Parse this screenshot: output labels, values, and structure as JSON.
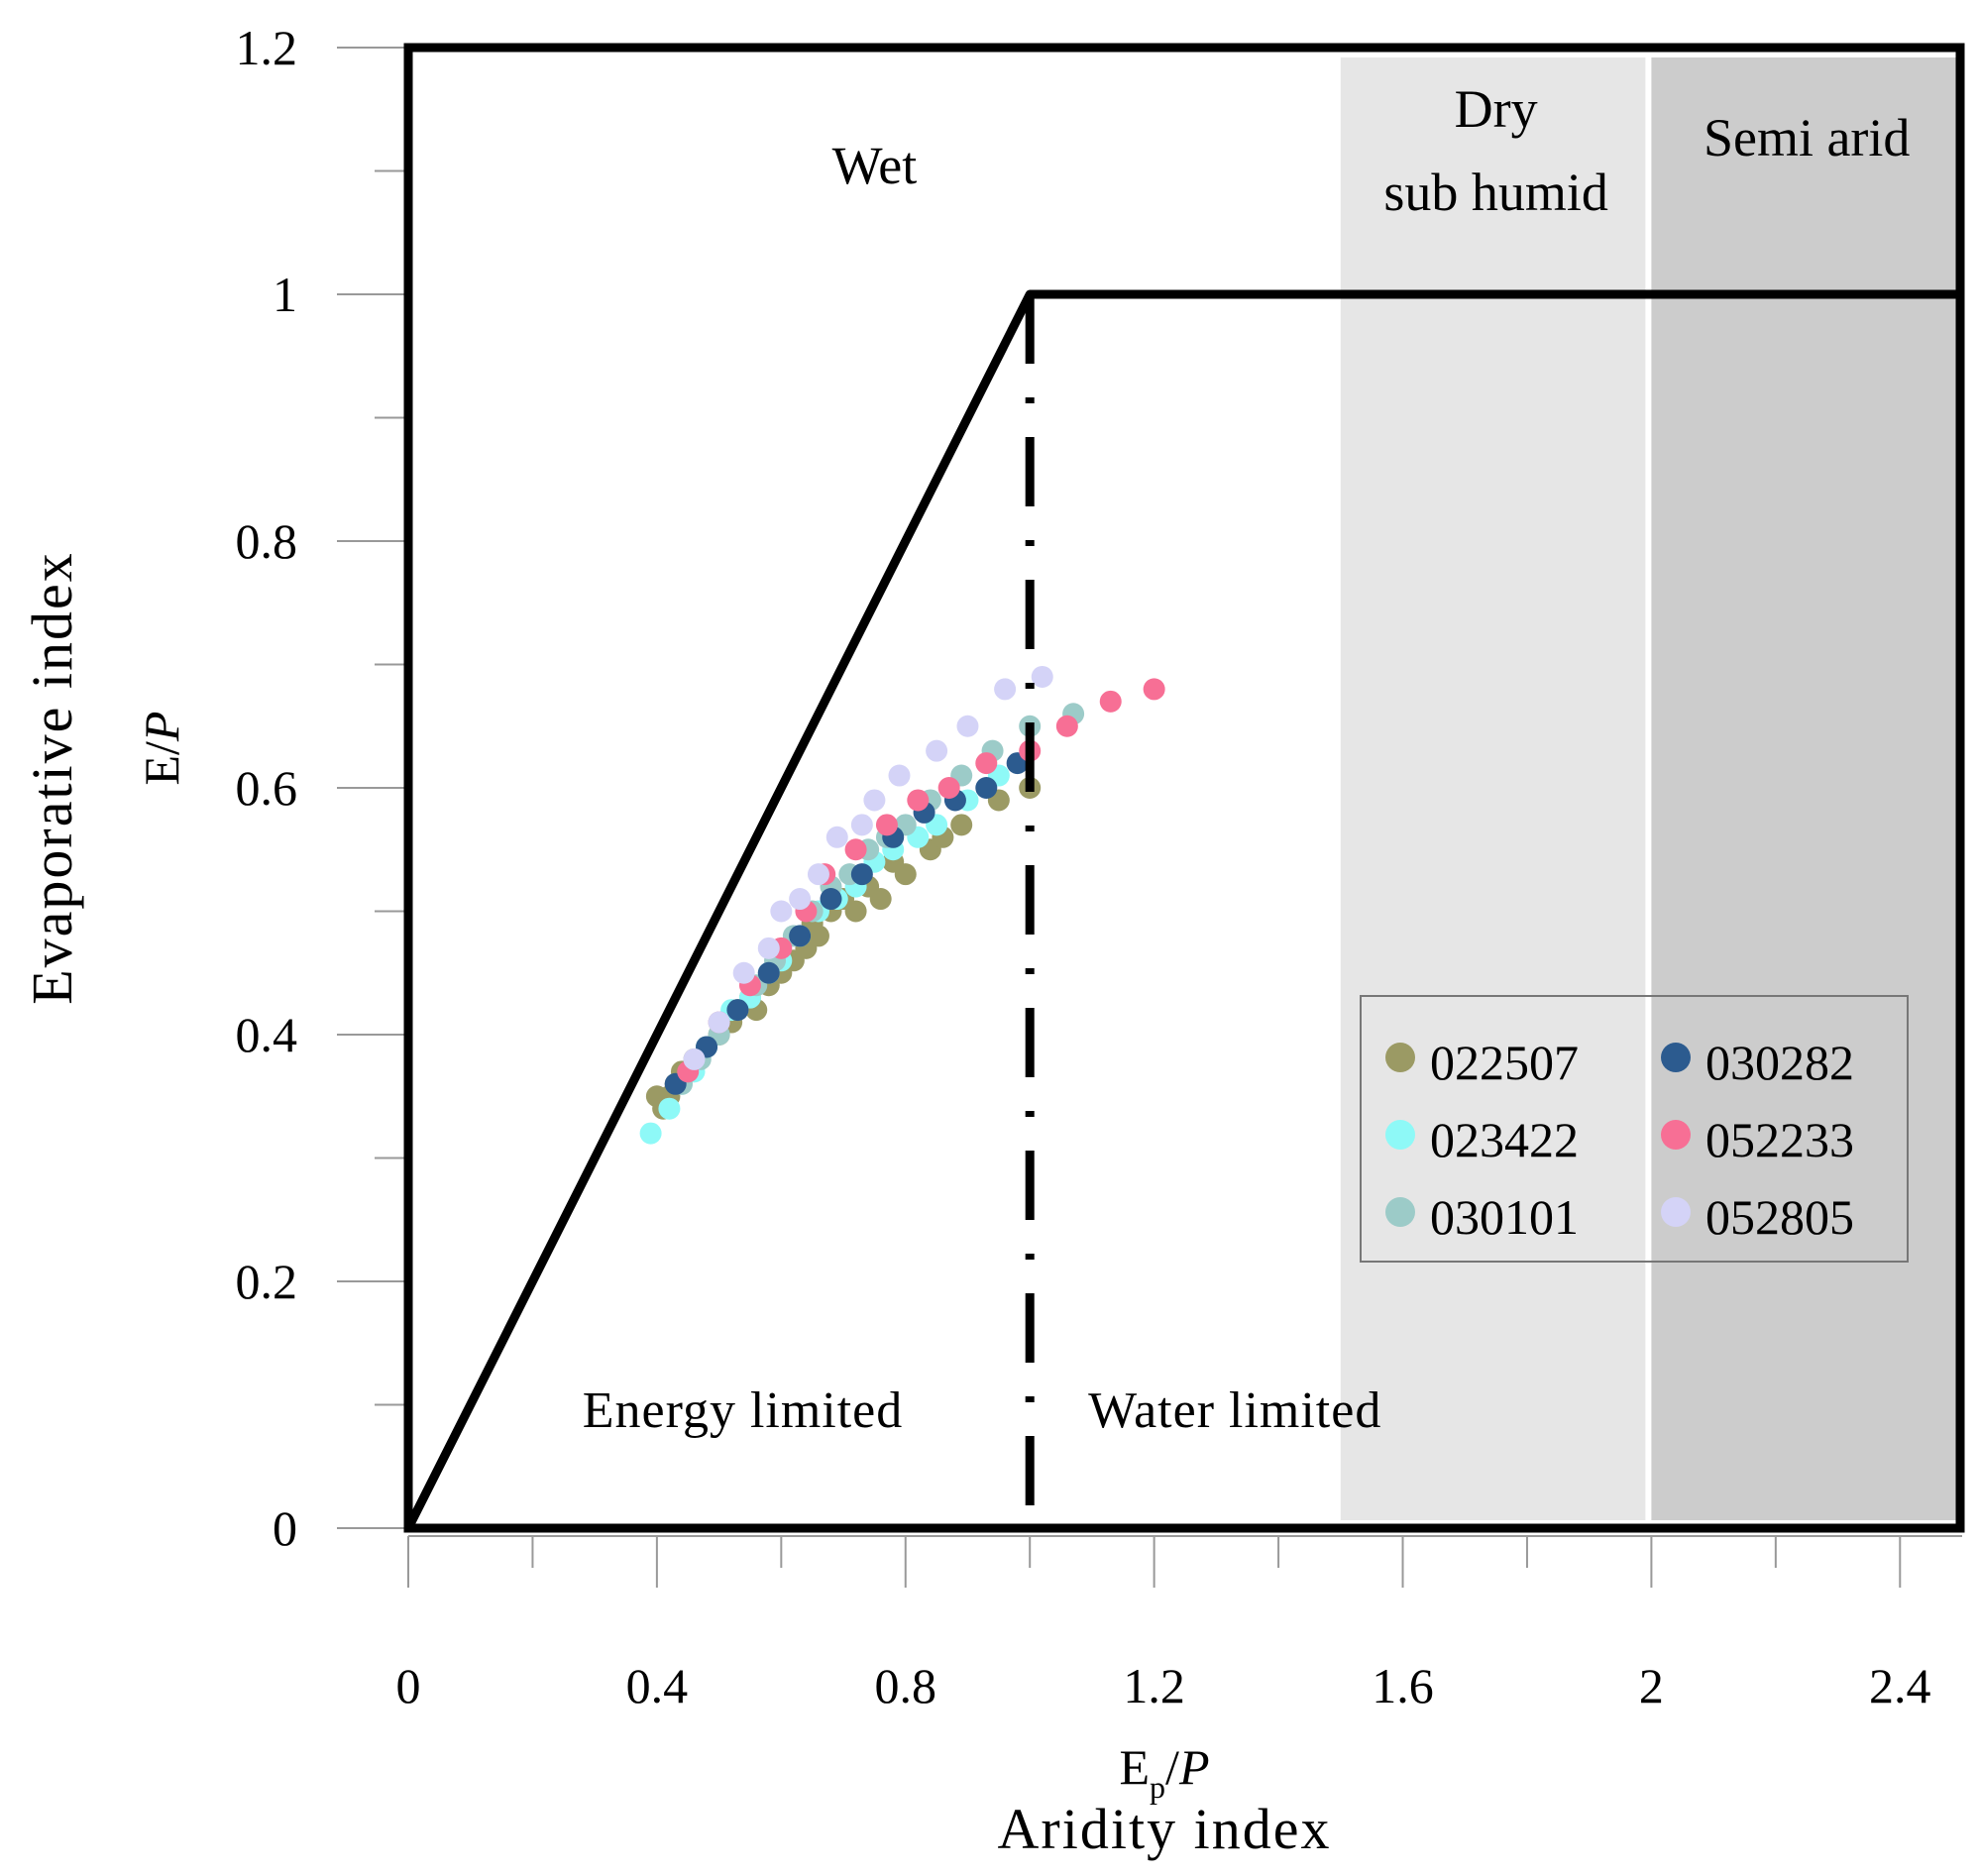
{
  "chart_data": {
    "type": "scatter",
    "xlim": [
      0,
      2.5
    ],
    "ylim": [
      0,
      1.2
    ],
    "x_ticks": [
      "0",
      "0.4",
      "0.8",
      "1.2",
      "1.6",
      "2",
      "2.4"
    ],
    "y_ticks": [
      "0",
      "0.2",
      "0.4",
      "0.6",
      "0.8",
      "1",
      "1.2"
    ],
    "xlabel_math": "Ep/P",
    "xlabel": "Aridity index",
    "ylabel_math": "E/P",
    "ylabel": "Evaporative index",
    "regions": [
      {
        "label": "Wet",
        "x_from": 0,
        "x_to": 1.5,
        "fill": "#ffffff"
      },
      {
        "label": "Dry sub humid",
        "label_lines": [
          "Dry",
          "sub humid"
        ],
        "x_from": 1.5,
        "x_to": 2.0,
        "fill": "#e6e6e6"
      },
      {
        "label": "Semi arid",
        "x_from": 2.0,
        "x_to": 2.5,
        "fill": "#cccccc"
      }
    ],
    "limits": {
      "energy_limit": [
        [
          0,
          0
        ],
        [
          1,
          1
        ]
      ],
      "water_limit": [
        [
          1,
          1
        ],
        [
          2.5,
          1
        ]
      ],
      "divider_x": 1,
      "left_label": "Energy limited",
      "right_label": "Water limited"
    },
    "grid": false,
    "legend_position": "lower-right",
    "series": [
      {
        "name": "022507",
        "color": "#9b9a64",
        "points": [
          [
            0.4,
            0.35
          ],
          [
            0.41,
            0.34
          ],
          [
            0.42,
            0.35
          ],
          [
            0.43,
            0.36
          ],
          [
            0.44,
            0.37
          ],
          [
            0.46,
            0.38
          ],
          [
            0.48,
            0.39
          ],
          [
            0.5,
            0.4
          ],
          [
            0.52,
            0.41
          ],
          [
            0.53,
            0.42
          ],
          [
            0.55,
            0.43
          ],
          [
            0.56,
            0.42
          ],
          [
            0.58,
            0.44
          ],
          [
            0.6,
            0.45
          ],
          [
            0.62,
            0.46
          ],
          [
            0.64,
            0.47
          ],
          [
            0.65,
            0.49
          ],
          [
            0.66,
            0.48
          ],
          [
            0.68,
            0.5
          ],
          [
            0.7,
            0.51
          ],
          [
            0.72,
            0.5
          ],
          [
            0.74,
            0.52
          ],
          [
            0.76,
            0.51
          ],
          [
            0.78,
            0.54
          ],
          [
            0.8,
            0.53
          ],
          [
            0.84,
            0.55
          ],
          [
            0.86,
            0.56
          ],
          [
            0.89,
            0.57
          ],
          [
            0.95,
            0.59
          ],
          [
            1.0,
            0.6
          ]
        ]
      },
      {
        "name": "023422",
        "color": "#8ef9f7",
        "points": [
          [
            0.39,
            0.32
          ],
          [
            0.42,
            0.34
          ],
          [
            0.44,
            0.36
          ],
          [
            0.46,
            0.37
          ],
          [
            0.48,
            0.39
          ],
          [
            0.5,
            0.41
          ],
          [
            0.52,
            0.42
          ],
          [
            0.55,
            0.43
          ],
          [
            0.58,
            0.45
          ],
          [
            0.6,
            0.46
          ],
          [
            0.63,
            0.48
          ],
          [
            0.66,
            0.5
          ],
          [
            0.69,
            0.51
          ],
          [
            0.72,
            0.52
          ],
          [
            0.75,
            0.54
          ],
          [
            0.78,
            0.55
          ],
          [
            0.82,
            0.56
          ],
          [
            0.85,
            0.57
          ],
          [
            0.9,
            0.59
          ],
          [
            0.95,
            0.61
          ]
        ]
      },
      {
        "name": "030101",
        "color": "#9ccbc8",
        "points": [
          [
            0.44,
            0.36
          ],
          [
            0.47,
            0.38
          ],
          [
            0.5,
            0.4
          ],
          [
            0.53,
            0.42
          ],
          [
            0.56,
            0.44
          ],
          [
            0.59,
            0.46
          ],
          [
            0.62,
            0.48
          ],
          [
            0.65,
            0.5
          ],
          [
            0.68,
            0.52
          ],
          [
            0.71,
            0.53
          ],
          [
            0.74,
            0.55
          ],
          [
            0.77,
            0.56
          ],
          [
            0.8,
            0.57
          ],
          [
            0.84,
            0.59
          ],
          [
            0.89,
            0.61
          ],
          [
            0.94,
            0.63
          ],
          [
            1.0,
            0.65
          ],
          [
            1.07,
            0.66
          ]
        ]
      },
      {
        "name": "030282",
        "color": "#2c5b8f",
        "points": [
          [
            0.43,
            0.36
          ],
          [
            0.48,
            0.39
          ],
          [
            0.53,
            0.42
          ],
          [
            0.58,
            0.45
          ],
          [
            0.63,
            0.48
          ],
          [
            0.68,
            0.51
          ],
          [
            0.73,
            0.53
          ],
          [
            0.78,
            0.56
          ],
          [
            0.83,
            0.58
          ],
          [
            0.88,
            0.59
          ],
          [
            0.93,
            0.6
          ],
          [
            0.98,
            0.62
          ]
        ]
      },
      {
        "name": "052233",
        "color": "#f76f95",
        "points": [
          [
            0.45,
            0.37
          ],
          [
            0.5,
            0.41
          ],
          [
            0.55,
            0.44
          ],
          [
            0.6,
            0.47
          ],
          [
            0.64,
            0.5
          ],
          [
            0.67,
            0.53
          ],
          [
            0.72,
            0.55
          ],
          [
            0.77,
            0.57
          ],
          [
            0.82,
            0.59
          ],
          [
            0.87,
            0.6
          ],
          [
            0.93,
            0.62
          ],
          [
            1.0,
            0.63
          ],
          [
            1.06,
            0.65
          ],
          [
            1.13,
            0.67
          ],
          [
            1.2,
            0.68
          ]
        ]
      },
      {
        "name": "052805",
        "color": "#d4d3f7",
        "points": [
          [
            0.46,
            0.38
          ],
          [
            0.5,
            0.41
          ],
          [
            0.54,
            0.45
          ],
          [
            0.58,
            0.47
          ],
          [
            0.6,
            0.5
          ],
          [
            0.63,
            0.51
          ],
          [
            0.66,
            0.53
          ],
          [
            0.69,
            0.56
          ],
          [
            0.73,
            0.57
          ],
          [
            0.75,
            0.59
          ],
          [
            0.79,
            0.61
          ],
          [
            0.85,
            0.63
          ],
          [
            0.9,
            0.65
          ],
          [
            0.96,
            0.68
          ],
          [
            1.02,
            0.69
          ]
        ]
      }
    ]
  }
}
